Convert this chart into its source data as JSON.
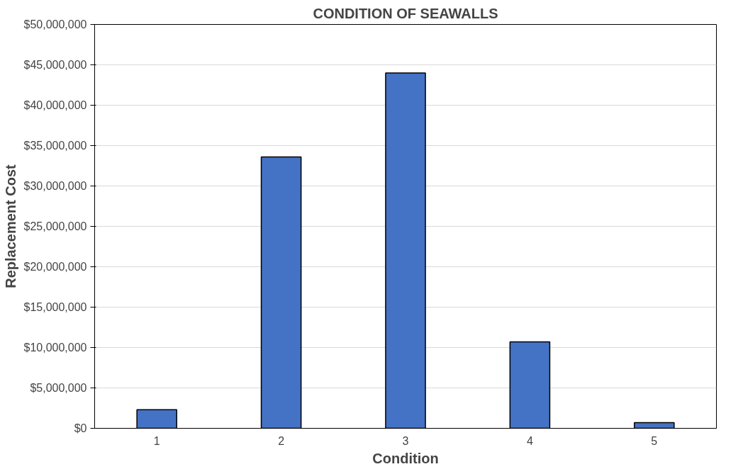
{
  "chart_data": {
    "type": "bar",
    "title": "CONDITION OF SEAWALLS",
    "xlabel": "Condition",
    "ylabel": "Replacement Cost",
    "categories": [
      "1",
      "2",
      "3",
      "4",
      "5"
    ],
    "values": [
      2300000,
      33600000,
      44000000,
      10700000,
      700000
    ],
    "color": "#4472c4",
    "ylim": [
      0,
      50000000
    ],
    "yticks": [
      {
        "value": 0,
        "label": "$0"
      },
      {
        "value": 5000000,
        "label": "$5,000,000"
      },
      {
        "value": 10000000,
        "label": "$10,000,000"
      },
      {
        "value": 15000000,
        "label": "$15,000,000"
      },
      {
        "value": 20000000,
        "label": "$20,000,000"
      },
      {
        "value": 25000000,
        "label": "$25,000,000"
      },
      {
        "value": 30000000,
        "label": "$30,000,000"
      },
      {
        "value": 35000000,
        "label": "$35,000,000"
      },
      {
        "value": 40000000,
        "label": "$40,000,000"
      },
      {
        "value": 45000000,
        "label": "$45,000,000"
      },
      {
        "value": 50000000,
        "label": "$50,000,000"
      }
    ],
    "grid": "y"
  }
}
